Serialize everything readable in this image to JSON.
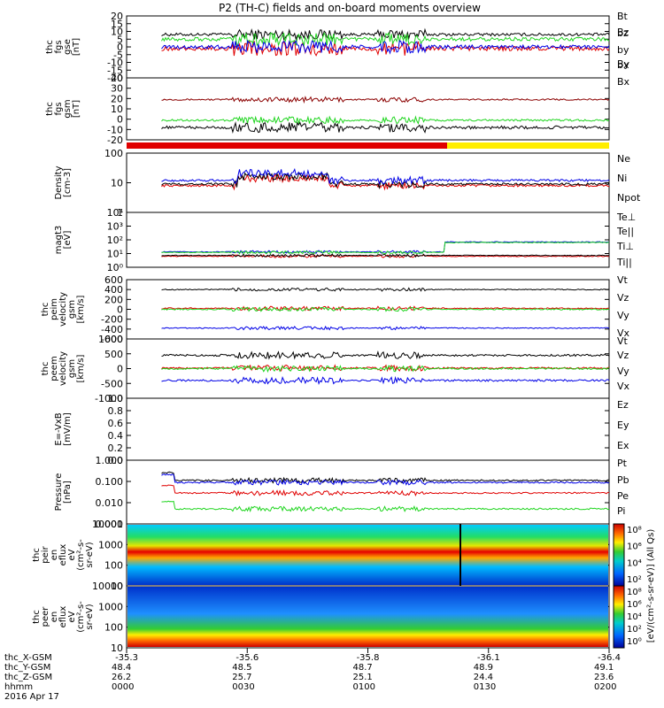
{
  "title": "P2 (TH-C) fields and on-board moments overview",
  "colors": {
    "black": "#000000",
    "red": "#e00000",
    "green": "#1fd51f",
    "blue": "#0000e6",
    "darkred": "#8b0000",
    "ylw": "#ffee00"
  },
  "chart_data": [
    {
      "type": "line",
      "panel": "fgs_gse",
      "ylabel": [
        "thc",
        "fgs",
        "gse",
        "[nT]"
      ],
      "ylim": [
        -20,
        20
      ],
      "ticks": [
        "20",
        "15",
        "10",
        "5",
        "0",
        "-5",
        "-10",
        "-15",
        "-20"
      ],
      "legend": [
        "Bt",
        "bz",
        "by",
        "bx"
      ],
      "series": [
        {
          "name": "Bt",
          "color": "black",
          "base": 8,
          "noise": 2
        },
        {
          "name": "bz",
          "color": "red",
          "base": -1,
          "noise": 3
        },
        {
          "name": "by",
          "color": "green",
          "base": 5,
          "noise": 2.5
        },
        {
          "name": "bx",
          "color": "blue",
          "base": 0,
          "noise": 2.5
        }
      ]
    },
    {
      "type": "line",
      "panel": "fgs_gsm",
      "ylabel": [
        "thc",
        "fgs",
        "gsm",
        "[nT]"
      ],
      "ylim": [
        -20,
        40
      ],
      "ticks": [
        "40",
        "30",
        "20",
        "10",
        "0",
        "-10",
        "-20"
      ],
      "legend": [
        "Bz",
        "By",
        "Bx"
      ],
      "series": [
        {
          "name": "Bz",
          "color": "darkred",
          "base": 19,
          "noise": 1.5
        },
        {
          "name": "By",
          "color": "green",
          "base": -1,
          "noise": 2
        },
        {
          "name": "Bx",
          "color": "black",
          "base": -8,
          "noise": 3
        }
      ]
    },
    {
      "type": "line",
      "panel": "density",
      "ylabel": [
        "Density",
        "[cm-3]"
      ],
      "log": true,
      "ylim": [
        1,
        100
      ],
      "ticks": [
        "100",
        "10",
        "1"
      ],
      "legend": [
        "Ne",
        "Ni",
        "Npot"
      ],
      "series": [
        {
          "name": "Ne",
          "color": "red",
          "base": 8
        },
        {
          "name": "Ni",
          "color": "black",
          "base": 9
        },
        {
          "name": "Npot",
          "color": "blue",
          "base": 12
        }
      ]
    },
    {
      "type": "line",
      "panel": "temperature",
      "ylabel": [
        "magt3",
        "[eV]"
      ],
      "log": true,
      "ylim": [
        1,
        100000
      ],
      "ticks": [
        "10⁴",
        "10³",
        "10²",
        "10¹",
        "10⁰"
      ],
      "legend": [
        "Te⊥",
        "Te||",
        "Ti⊥",
        "Ti||"
      ],
      "series": [
        {
          "name": "Te⊥",
          "color": "red",
          "base": 10
        },
        {
          "name": "Te||",
          "color": "black",
          "base": 12
        },
        {
          "name": "Ti⊥",
          "color": "blue",
          "base": 200
        },
        {
          "name": "Ti||",
          "color": "green",
          "base": 180
        }
      ]
    },
    {
      "type": "line",
      "panel": "peim_velocity",
      "ylabel": [
        "thc",
        "peim",
        "velocity",
        "gsm",
        "[km/s]"
      ],
      "ylim": [
        -600,
        600
      ],
      "ticks": [
        "600",
        "400",
        "200",
        "0",
        "-200",
        "-400",
        "-600"
      ],
      "legend": [
        "Vt",
        "Vz",
        "Vy",
        "Vx"
      ],
      "series": [
        {
          "name": "Vt",
          "color": "black",
          "base": 400,
          "noise": 20
        },
        {
          "name": "Vz",
          "color": "red",
          "base": 20,
          "noise": 25
        },
        {
          "name": "Vy",
          "color": "green",
          "base": 0,
          "noise": 25
        },
        {
          "name": "Vx",
          "color": "blue",
          "base": -380,
          "noise": 20
        }
      ]
    },
    {
      "type": "line",
      "panel": "peem_velocity",
      "ylabel": [
        "thc",
        "peem",
        "velocity",
        "gsm",
        "[km/s]"
      ],
      "ylim": [
        -1000,
        1000
      ],
      "ticks": [
        "1000",
        "500",
        "0",
        "-500",
        "-1000"
      ],
      "legend": [
        "Vt",
        "Vz",
        "Vy",
        "Vx"
      ],
      "series": [
        {
          "name": "Vt",
          "color": "black",
          "base": 450,
          "noise": 70
        },
        {
          "name": "Vz",
          "color": "red",
          "base": 20,
          "noise": 60
        },
        {
          "name": "Vy",
          "color": "green",
          "base": 0,
          "noise": 60
        },
        {
          "name": "Vx",
          "color": "blue",
          "base": -400,
          "noise": 70
        }
      ]
    },
    {
      "type": "line",
      "panel": "efield",
      "ylabel": [
        "E=-VxB",
        "[mV/m]"
      ],
      "ylim": [
        0,
        1
      ],
      "ticks": [
        "1.0",
        "0.8",
        "0.6",
        "0.4",
        "0.2",
        "0.0"
      ],
      "legend": [
        "Ez",
        "Ey",
        "Ex"
      ],
      "series": []
    },
    {
      "type": "line",
      "panel": "pressure",
      "ylabel": [
        "Pressure",
        "[nPa]"
      ],
      "log": true,
      "ylim": [
        0.0005,
        1
      ],
      "ticks": [
        "1.000",
        "0.100",
        "0.010",
        "0.001"
      ],
      "legend": [
        "Pt",
        "Pb",
        "Pe",
        "Pi"
      ],
      "series": [
        {
          "name": "Pt",
          "color": "black",
          "base": 0.09
        },
        {
          "name": "Pb",
          "color": "red",
          "base": 0.02
        },
        {
          "name": "Pe",
          "color": "green",
          "base": 0.003
        },
        {
          "name": "Pi",
          "color": "blue",
          "base": 0.07
        }
      ]
    },
    {
      "type": "heatmap",
      "panel": "peir_spectrogram",
      "ylabel": [
        "thc",
        "peir",
        "en",
        "eflux",
        "eV",
        "(cm²-s-",
        "sr-eV)"
      ],
      "log": true,
      "ticks": [
        "10000",
        "1000",
        "100",
        "10"
      ],
      "colorbar": [
        "10⁸",
        "10⁶",
        "10⁴",
        "10²"
      ]
    },
    {
      "type": "heatmap",
      "panel": "peer_spectrogram",
      "ylabel": [
        "thc",
        "peer",
        "en",
        "eflux",
        "eV",
        "(cm²-s-",
        "sr-eV)"
      ],
      "log": true,
      "ticks": [
        "10000",
        "1000",
        "100",
        "10"
      ],
      "colorbar": [
        "10⁸",
        "10⁶",
        "10⁴",
        "10²",
        "10⁰"
      ]
    }
  ],
  "colorbar_label": "[eV/(cm²-s-sr-eV)] (All Qs)",
  "xaxis": {
    "rows": [
      {
        "label": "thc_X-GSM",
        "values": [
          "-35.3",
          "-35.6",
          "-35.8",
          "-36.1",
          "-36.4"
        ]
      },
      {
        "label": "thc_Y-GSM",
        "values": [
          "48.4",
          "48.5",
          "48.7",
          "48.9",
          "49.1"
        ]
      },
      {
        "label": "thc_Z-GSM",
        "values": [
          "26.2",
          "25.7",
          "25.1",
          "24.4",
          "23.6"
        ]
      },
      {
        "label": "hhmm",
        "values": [
          "0000",
          "0030",
          "0100",
          "0130",
          "0200"
        ]
      }
    ],
    "date": "2016 Apr 17"
  }
}
